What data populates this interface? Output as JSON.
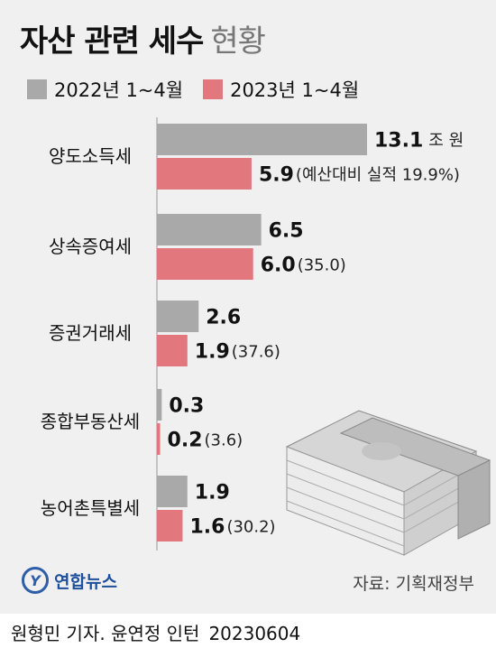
{
  "title_bold": "자산 관련 세수",
  "title_light": "현황",
  "colors": {
    "series2022": "#a9a9a9",
    "series2023": "#e2787d",
    "background": "#f0f0f0"
  },
  "chart_data": {
    "type": "bar",
    "orientation": "horizontal",
    "categories": [
      "양도소득세",
      "상속증여세",
      "증권거래세",
      "종합부동산세",
      "농어촌특별세"
    ],
    "series": [
      {
        "name": "2022년 1~4월",
        "values": [
          13.1,
          6.5,
          2.6,
          0.3,
          1.9
        ]
      },
      {
        "name": "2023년 1~4월",
        "values": [
          5.9,
          6.0,
          1.9,
          0.2,
          1.6
        ]
      }
    ],
    "value_labels_2022": [
      "13.1",
      "6.5",
      "2.6",
      "0.3",
      "1.9"
    ],
    "value_labels_2023": [
      "5.9",
      "6.0",
      "1.9",
      "0.2",
      "1.6"
    ],
    "first_unit": "조 원",
    "progress_labels": [
      "(예산대비 실적 19.9%)",
      "(35.0)",
      "(37.6)",
      "(3.6)",
      "(30.2)"
    ],
    "legend_placement": "top-left",
    "grid": false,
    "xlim": [
      0,
      13.1
    ]
  },
  "logo_text": "연합뉴스",
  "logo_mark": "Y",
  "source": "자료: 기획재정부",
  "credit": {
    "authors": "원형민 기자. 윤연정 인턴",
    "date": "20230604"
  },
  "illustration": "money-stack-icon"
}
